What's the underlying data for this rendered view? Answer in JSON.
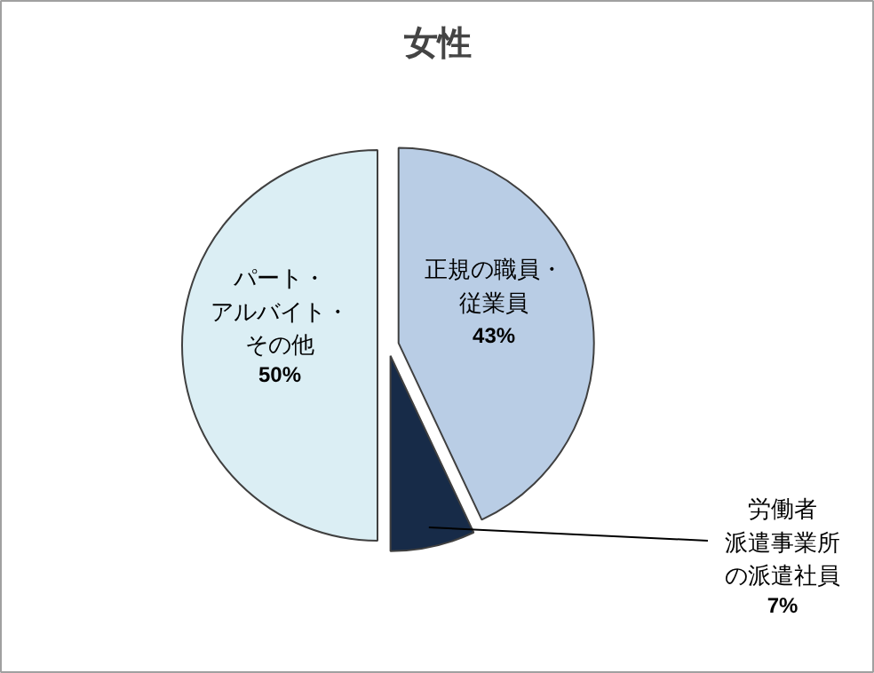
{
  "chart_data": {
    "type": "pie",
    "title": "女性",
    "categories": [
      "正規の職員・従業員",
      "労働者派遣事業所の派遣社員",
      "パート・アルバイト・その他"
    ],
    "values": [
      43,
      7,
      50
    ],
    "colors": [
      "#b9cde5",
      "#172b48",
      "#dbeef4"
    ],
    "value_labels": [
      "43%",
      "7%",
      "50%"
    ]
  }
}
